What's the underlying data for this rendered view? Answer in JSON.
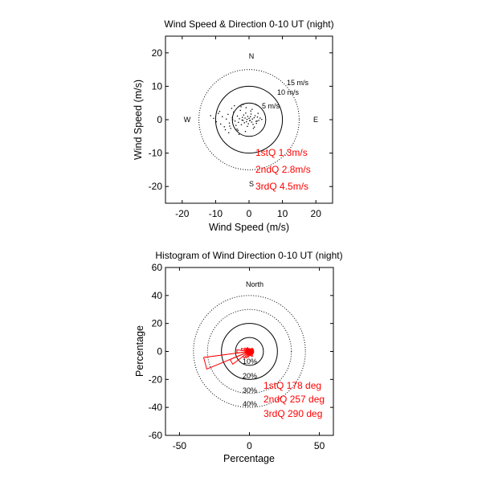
{
  "chart_data": [
    {
      "type": "scatter",
      "title": "Wind Speed & Direction 0-10 UT (night)",
      "xlabel": "Wind Speed (m/s)",
      "ylabel": "Wind Speed (m/s)",
      "xlim": [
        -25,
        25
      ],
      "ylim": [
        -25,
        25
      ],
      "xticks": [
        "-20",
        "-10",
        "0",
        "10",
        "20"
      ],
      "yticks": [
        "20",
        "10",
        "0",
        "-10",
        "-20"
      ],
      "compass": {
        "n": "N",
        "s": "S",
        "e": "E",
        "w": "W"
      },
      "rings": [
        {
          "r": 5,
          "label": "5 m/s",
          "style": "solid"
        },
        {
          "r": 10,
          "label": "10 m/s",
          "style": "solid"
        },
        {
          "r": 15,
          "label": "15 m/s",
          "style": "dotted"
        }
      ],
      "quartiles": [
        "1stQ 1.3m/s",
        "2ndQ 2.8m/s",
        "3rdQ 4.5m/s"
      ],
      "points_x": [
        -11.5,
        -10.6,
        -9.8,
        -9.2,
        -8.5,
        -8.0,
        -7.4,
        -6.8,
        -6.3,
        -5.9,
        -5.5,
        -5.0,
        -4.6,
        -4.2,
        -3.9,
        -3.5,
        -3.2,
        -2.9,
        -2.6,
        -2.3,
        -2.0,
        -1.8,
        -1.6,
        -1.4,
        -1.2,
        -1.0,
        -0.8,
        -0.6,
        -0.4,
        -0.2,
        0.0,
        0.2,
        0.4,
        0.6,
        0.8,
        1.0,
        1.2,
        1.5,
        1.8,
        2.1,
        2.5,
        2.9,
        3.3,
        3.8,
        -7.1,
        -5.2,
        -3.6,
        -2.4,
        -1.1,
        0.5,
        1.6,
        2.7,
        -8.8,
        -6.1,
        -4.4,
        -3.0,
        -1.7,
        -0.5,
        0.9,
        2.2,
        -5.8,
        -3.3,
        -0.9,
        1.3,
        -4.9,
        -2.1,
        0.3,
        2.4
      ],
      "points_y": [
        1.2,
        0.4,
        -0.6,
        1.9,
        -1.3,
        0.9,
        -2.1,
        0.2,
        1.6,
        -1.0,
        -2.6,
        0.6,
        2.3,
        -0.4,
        -1.7,
        1.1,
        -0.8,
        0.3,
        2.8,
        -1.5,
        0.7,
        -0.2,
        1.4,
        -0.9,
        0.5,
        2.0,
        -0.6,
        0.1,
        1.0,
        -1.2,
        0.4,
        -0.3,
        0.9,
        1.7,
        -0.7,
        0.2,
        -1.4,
        0.6,
        1.2,
        -0.5,
        0.8,
        -0.2,
        0.5,
        0.1,
        -3.0,
        3.4,
        -2.8,
        3.9,
        -3.5,
        2.6,
        -2.2,
        1.9,
        2.5,
        -3.9,
        4.2,
        -4.4,
        4.6,
        -2.0,
        3.1,
        -1.1,
        -1.9,
        -3.2,
        3.6,
        -2.6,
        0.0,
        -0.1,
        -0.2,
        -0.4
      ]
    },
    {
      "type": "polar-histogram",
      "title": "Histogram of Wind Direction 0-10 UT (night)",
      "xlabel": "Percentage",
      "ylabel": "Percentage",
      "xlim": [
        -60,
        60
      ],
      "ylim": [
        -60,
        60
      ],
      "xticks": [
        "-50",
        "0",
        "50"
      ],
      "yticks": [
        "60",
        "40",
        "20",
        "0",
        "-20",
        "-40",
        "-60"
      ],
      "north_label": "North",
      "rings": [
        {
          "r": 10,
          "label": "10%",
          "style": "solid"
        },
        {
          "r": 20,
          "label": "20%",
          "style": "solid"
        },
        {
          "r": 30,
          "label": "30%",
          "style": "dotted"
        },
        {
          "r": 40,
          "label": "40%",
          "style": "dotted"
        }
      ],
      "quartiles": [
        "1stQ 178 deg",
        "2ndQ 257 deg",
        "3rdQ 290 deg"
      ],
      "bin_width_deg": 15,
      "bin_centers_deg": [
        0,
        15,
        30,
        45,
        60,
        75,
        90,
        105,
        120,
        135,
        150,
        165,
        180,
        195,
        210,
        225,
        240,
        255,
        270,
        285,
        300,
        315,
        330,
        345
      ],
      "bin_percent": [
        2,
        2,
        2,
        3,
        3,
        3,
        3,
        3,
        3,
        3,
        4,
        3,
        3,
        4,
        5,
        6,
        15,
        33,
        9,
        6,
        4,
        3,
        3,
        2
      ]
    }
  ]
}
